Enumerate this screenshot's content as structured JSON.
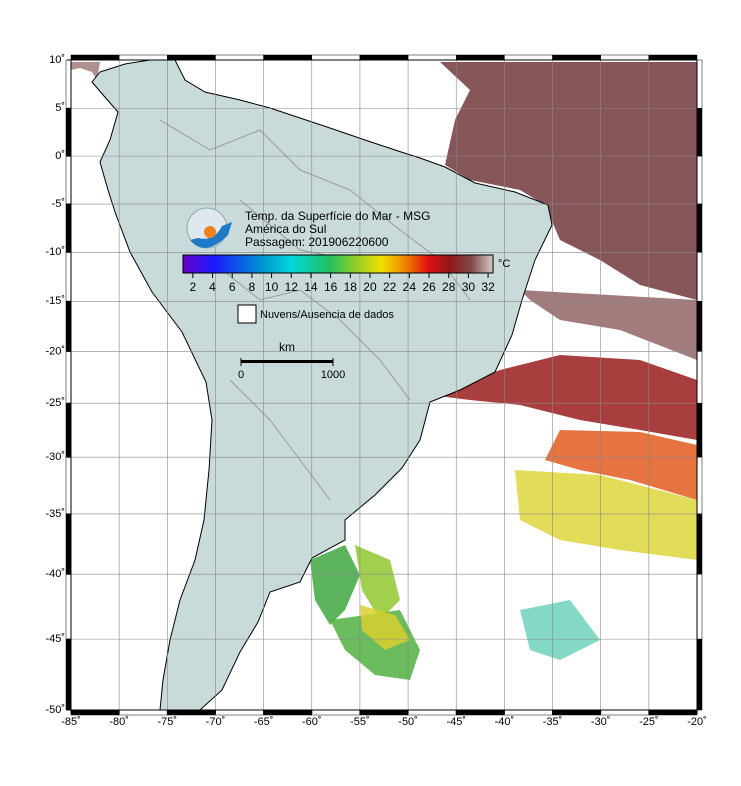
{
  "map": {
    "title_lines": [
      "Temp. da Superfície do Mar - MSG",
      "América do Sul",
      "Passagem: 201906220600"
    ],
    "lonlim": [
      -85,
      -20
    ],
    "latlim": [
      -50,
      10
    ],
    "lonticks": [
      {
        "value": -85,
        "label": "-85˚"
      },
      {
        "value": -80,
        "label": "-80˚"
      },
      {
        "value": -75,
        "label": "-75˚"
      },
      {
        "value": -70,
        "label": "-70˚"
      },
      {
        "value": -65,
        "label": "-65˚"
      },
      {
        "value": -60,
        "label": "-60˚"
      },
      {
        "value": -55,
        "label": "-55˚"
      },
      {
        "value": -50,
        "label": "-50˚"
      },
      {
        "value": -45,
        "label": "-45˚"
      },
      {
        "value": -40,
        "label": "-40˚"
      },
      {
        "value": -35,
        "label": "-35˚"
      },
      {
        "value": -30,
        "label": "-30˚"
      },
      {
        "value": -25,
        "label": "-25˚"
      },
      {
        "value": -20,
        "label": "-20˚"
      }
    ],
    "latticks": [
      {
        "value": 10,
        "label": "10˚"
      },
      {
        "value": 5,
        "label": "5˚"
      },
      {
        "value": 0,
        "label": "0˚"
      },
      {
        "value": -5,
        "label": "-5˚"
      },
      {
        "value": -10,
        "label": "-10˚"
      },
      {
        "value": -15,
        "label": "-15˚"
      },
      {
        "value": -20,
        "label": "-20˚"
      },
      {
        "value": -25,
        "label": "-25˚"
      },
      {
        "value": -30,
        "label": "-30˚"
      },
      {
        "value": -35,
        "label": "-35˚"
      },
      {
        "value": -40,
        "label": "-40˚"
      },
      {
        "value": -45,
        "label": "-45˚"
      },
      {
        "value": -50,
        "label": "-50˚"
      }
    ],
    "projection": "mercator",
    "grid": true
  },
  "colorbar": {
    "clim": [
      1,
      32.5
    ],
    "ticks": [
      2,
      4,
      6,
      8,
      10,
      12,
      14,
      16,
      18,
      20,
      22,
      24,
      26,
      28,
      30,
      32
    ],
    "unit": "°C"
  },
  "legend": {
    "label": "Nuvens/Ausencia de dados"
  },
  "scalebar": {
    "unit": "km",
    "ticks": [
      0,
      1000
    ]
  }
}
